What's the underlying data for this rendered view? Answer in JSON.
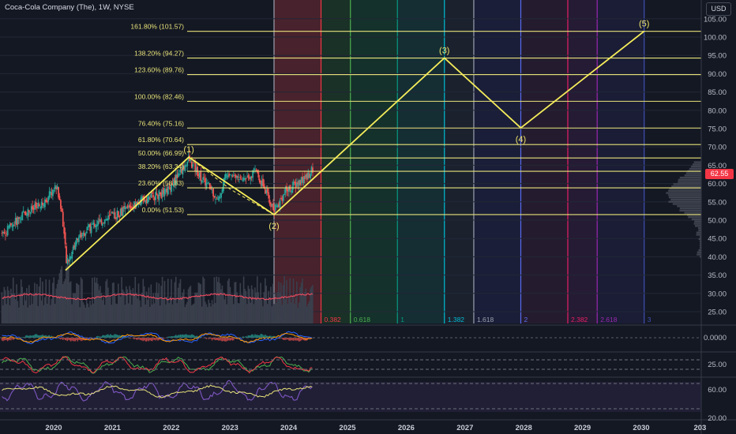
{
  "header": {
    "title": "Coca-Cola Company (The), 1W, NYSE",
    "currency": "USD",
    "last_price": "62.55"
  },
  "colors": {
    "background": "#141823",
    "fib_line": "#e8e27a",
    "wave_line": "#f5ec5a",
    "price_tag": "#f23645",
    "candle_up": "#26a69a",
    "candle_down": "#ef5350"
  },
  "chart_data": {
    "type": "line",
    "symbol": "Coca-Cola Company (The), 1W, NYSE",
    "price_axis": {
      "ticks": [
        "105.00",
        "100.00",
        "95.00",
        "90.00",
        "85.00",
        "80.00",
        "75.00",
        "70.00",
        "65.00",
        "60.00",
        "55.00",
        "50.00",
        "45.00",
        "40.00",
        "35.00",
        "30.00",
        "25.00"
      ],
      "range": [
        22,
        107
      ]
    },
    "time_axis": {
      "ticks": [
        "2020",
        "2021",
        "2022",
        "2023",
        "2024",
        "2025",
        "2026",
        "2027",
        "2028",
        "2029",
        "2030",
        "203"
      ],
      "range": [
        2019.2,
        2031.1
      ]
    },
    "fibonacci_levels": [
      {
        "label": "161.80% (101.57)",
        "price": 101.57
      },
      {
        "label": "138.20% (94.27)",
        "price": 94.27
      },
      {
        "label": "123.60% (89.76)",
        "price": 89.76
      },
      {
        "label": "100.00% (82.46)",
        "price": 82.46
      },
      {
        "label": "76.40% (75.16)",
        "price": 75.16
      },
      {
        "label": "61.80% (70.64)",
        "price": 70.64
      },
      {
        "label": "50.00% (66.99)",
        "price": 66.99
      },
      {
        "label": "38.20% (63.34)",
        "price": 63.34
      },
      {
        "label": "23.60% (58.83)",
        "price": 58.83
      },
      {
        "label": "0.00% (51.53)",
        "price": 51.53
      }
    ],
    "fib_time_zones": [
      {
        "label": "0",
        "t": 2023.75,
        "color": "#9aa0ad",
        "shade": "#5a2530"
      },
      {
        "label": "0.382",
        "t": 2024.55,
        "color": "#f23645",
        "shade": "#1c3a2a"
      },
      {
        "label": "0.618",
        "t": 2025.05,
        "color": "#4caf50",
        "shade": "#16392f"
      },
      {
        "label": "1",
        "t": 2025.85,
        "color": "#089981",
        "shade": "#14363b"
      },
      {
        "label": "1.382",
        "t": 2026.65,
        "color": "#00bcd4",
        "shade": "#1d2633"
      },
      {
        "label": "1.618",
        "t": 2027.15,
        "color": "#9aa0ad",
        "shade": "#1c2040"
      },
      {
        "label": "2",
        "t": 2027.95,
        "color": "#5b6cf0",
        "shade": "#2a1d33"
      },
      {
        "label": "2.382",
        "t": 2028.75,
        "color": "#e91e63",
        "shade": "#2b1c3b"
      },
      {
        "label": "2.618",
        "t": 2029.25,
        "color": "#9c27b0",
        "shade": "#1c1f3c"
      },
      {
        "label": "3",
        "t": 2030.05,
        "color": "#3f51b5",
        "shade": null
      }
    ],
    "wave_path": [
      {
        "t": 2020.2,
        "price": 36.3,
        "label": ""
      },
      {
        "t": 2022.3,
        "price": 67.2,
        "label": "(1)"
      },
      {
        "t": 2023.75,
        "price": 51.5,
        "label": "(2)"
      },
      {
        "t": 2026.65,
        "price": 94.3,
        "label": "(3)"
      },
      {
        "t": 2027.95,
        "price": 75.2,
        "label": "(4)"
      },
      {
        "t": 2030.05,
        "price": 101.6,
        "label": "(5)"
      }
    ],
    "price_history": [
      {
        "t": 2019.2,
        "price": 47.0
      },
      {
        "t": 2019.5,
        "price": 52.0
      },
      {
        "t": 2019.8,
        "price": 54.0
      },
      {
        "t": 2020.05,
        "price": 59.5
      },
      {
        "t": 2020.15,
        "price": 51.0
      },
      {
        "t": 2020.22,
        "price": 38.0
      },
      {
        "t": 2020.4,
        "price": 45.0
      },
      {
        "t": 2020.7,
        "price": 49.0
      },
      {
        "t": 2021.0,
        "price": 51.0
      },
      {
        "t": 2021.3,
        "price": 53.5
      },
      {
        "t": 2021.6,
        "price": 56.0
      },
      {
        "t": 2021.9,
        "price": 57.5
      },
      {
        "t": 2022.1,
        "price": 62.0
      },
      {
        "t": 2022.3,
        "price": 66.5
      },
      {
        "t": 2022.5,
        "price": 62.0
      },
      {
        "t": 2022.7,
        "price": 58.0
      },
      {
        "t": 2022.8,
        "price": 55.0
      },
      {
        "t": 2022.95,
        "price": 63.5
      },
      {
        "t": 2023.2,
        "price": 61.0
      },
      {
        "t": 2023.45,
        "price": 63.5
      },
      {
        "t": 2023.6,
        "price": 58.0
      },
      {
        "t": 2023.75,
        "price": 52.5
      },
      {
        "t": 2023.95,
        "price": 58.0
      },
      {
        "t": 2024.2,
        "price": 60.5
      },
      {
        "t": 2024.4,
        "price": 63.5
      }
    ],
    "indicator_panes": [
      {
        "name": "macd",
        "ticks": [
          "0.0000"
        ]
      },
      {
        "name": "stoch",
        "ticks": [
          "25.00"
        ]
      },
      {
        "name": "rsi",
        "ticks": [
          "60.00",
          "20.00"
        ]
      }
    ]
  }
}
